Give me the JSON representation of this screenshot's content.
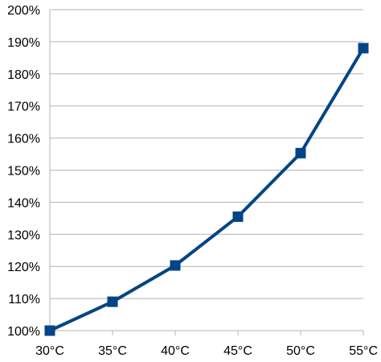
{
  "chart_data": {
    "type": "line",
    "title": "",
    "xlabel": "",
    "ylabel": "",
    "categories": [
      "30°C",
      "35°C",
      "40°C",
      "45°C",
      "50°C",
      "55°C"
    ],
    "series": [
      {
        "values": [
          100,
          109,
          120.3,
          135.5,
          155.3,
          188
        ]
      }
    ],
    "y_tick_labels": [
      "100%",
      "110%",
      "120%",
      "130%",
      "140%",
      "150%",
      "160%",
      "170%",
      "180%",
      "190%",
      "200%"
    ],
    "ylim": [
      100,
      200
    ],
    "y_unit": "%",
    "grid": true,
    "legend": "none",
    "line_color": "#004586",
    "grid_color": "#b3b3b3",
    "axis_color": "#b3b3b3",
    "marker": "square-icon"
  }
}
